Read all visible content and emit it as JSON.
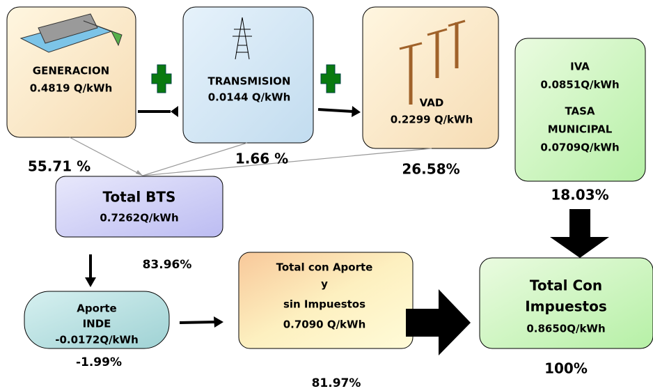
{
  "nodes": [
    {
      "lines": [
        "GENERACION",
        "0.4819 Q/kWh"
      ]
    },
    {
      "lines": [
        "TRANSMISION",
        "0.0144 Q/kWh"
      ]
    },
    {
      "lines": [
        "VAD",
        "0.2299 Q/kWh"
      ]
    },
    {
      "lines": [
        "IVA",
        "0.0851Q/kWh",
        "TASA",
        "MUNICIPAL",
        "0.0709Q/kWh"
      ]
    },
    {
      "lines": [
        "Total BTS",
        "0.7262Q/kWh"
      ]
    },
    {
      "lines": [
        "Aporte",
        "INDE",
        "-0.0172Q/kWh"
      ]
    },
    {
      "lines": [
        "Total con Aporte",
        "y",
        "sin Impuestos",
        "0.7090 Q/kWh"
      ]
    },
    {
      "lines": [
        "Total Con",
        "Impuestos",
        "0.8650Q/kWh"
      ]
    }
  ],
  "percentages": [
    "55.71 %",
    "1.66 %",
    "26.58%",
    "18.03%",
    "83.96%",
    "-1.99%",
    "81.97%",
    "100%"
  ]
}
